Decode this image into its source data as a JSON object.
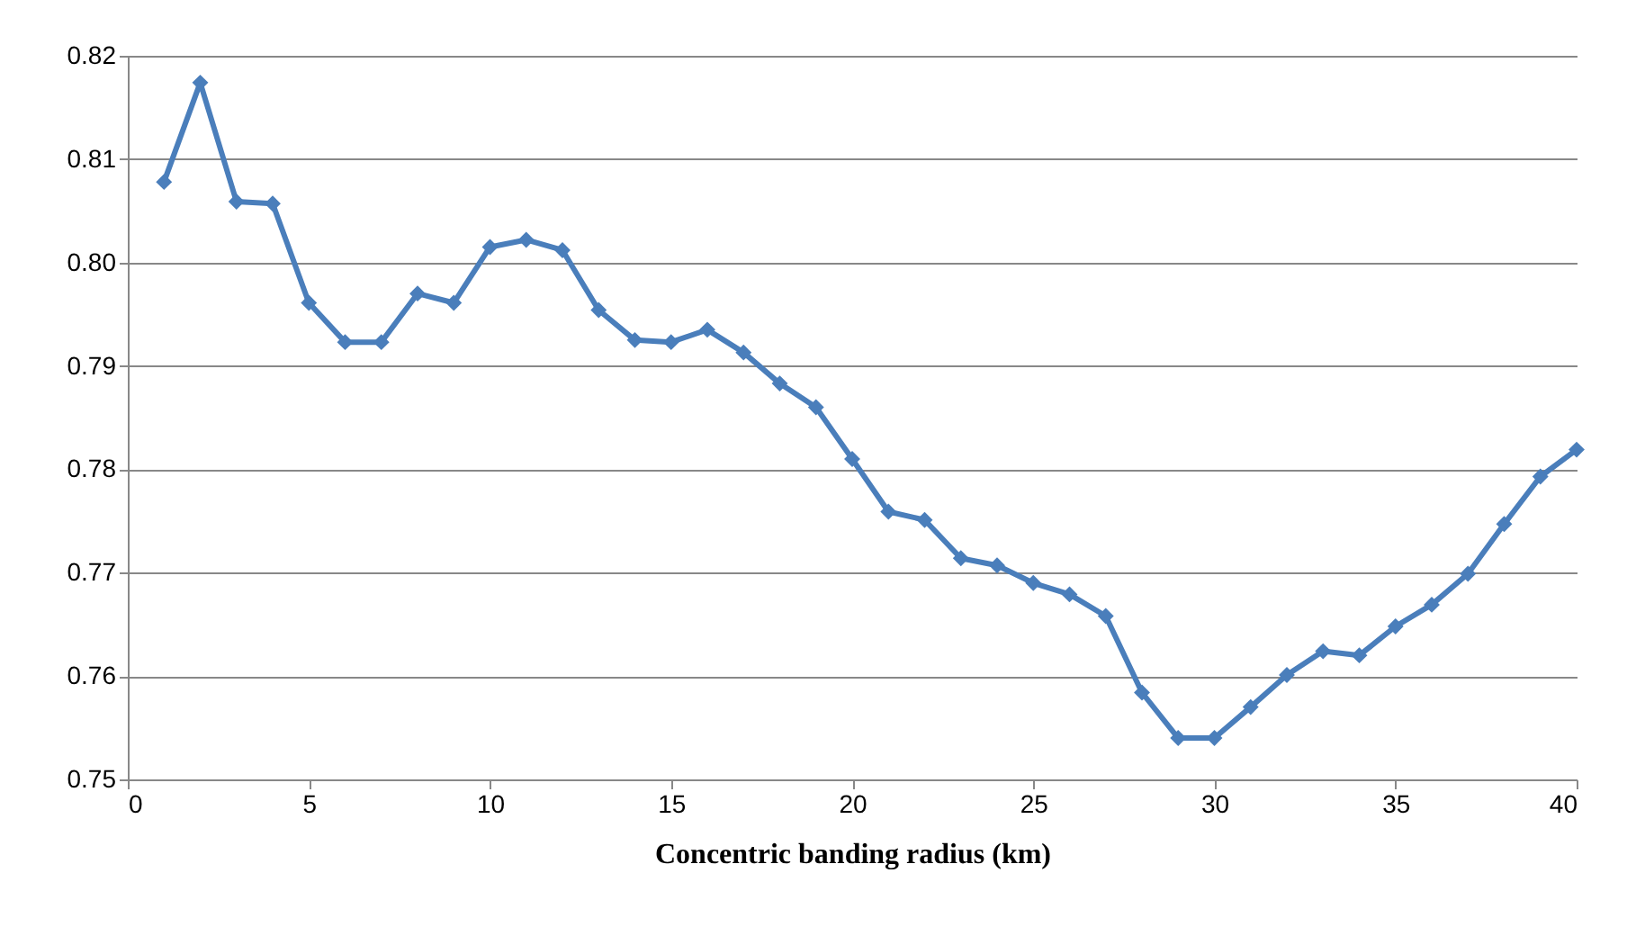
{
  "chart_data": {
    "type": "line",
    "xlabel": "Concentric banding radius (km)",
    "x": [
      1,
      2,
      3,
      4,
      5,
      6,
      7,
      8,
      9,
      10,
      11,
      12,
      13,
      14,
      15,
      16,
      17,
      18,
      19,
      20,
      21,
      22,
      23,
      24,
      25,
      26,
      27,
      28,
      29,
      30,
      31,
      32,
      33,
      34,
      35,
      36,
      37,
      38,
      39,
      40
    ],
    "series": [
      {
        "color": "#4a7ebb",
        "values": [
          0.8078,
          0.8174,
          0.8059,
          0.8057,
          0.7961,
          0.7923,
          0.7923,
          0.797,
          0.7961,
          0.8015,
          0.8022,
          0.8012,
          0.7954,
          0.7925,
          0.7923,
          0.7935,
          0.7913,
          0.7883,
          0.786,
          0.781,
          0.7759,
          0.7751,
          0.7714,
          0.7707,
          0.769,
          0.7679,
          0.7658,
          0.7584,
          0.754,
          0.754,
          0.757,
          0.7601,
          0.7624,
          0.762,
          0.7648,
          0.7669,
          0.7699,
          0.7747,
          0.7793,
          0.7819
        ]
      }
    ],
    "xlim": [
      0,
      40
    ],
    "xticks": [
      0,
      5,
      10,
      15,
      20,
      25,
      30,
      35,
      40
    ],
    "ylim": [
      0.75,
      0.82
    ],
    "yticks": [
      0.75,
      0.76,
      0.77,
      0.78,
      0.79,
      {
        "value": 0.8,
        "label": "0.80"
      },
      0.81,
      0.82
    ],
    "grid": "y",
    "marker": "diamond",
    "line_style": "solid"
  }
}
